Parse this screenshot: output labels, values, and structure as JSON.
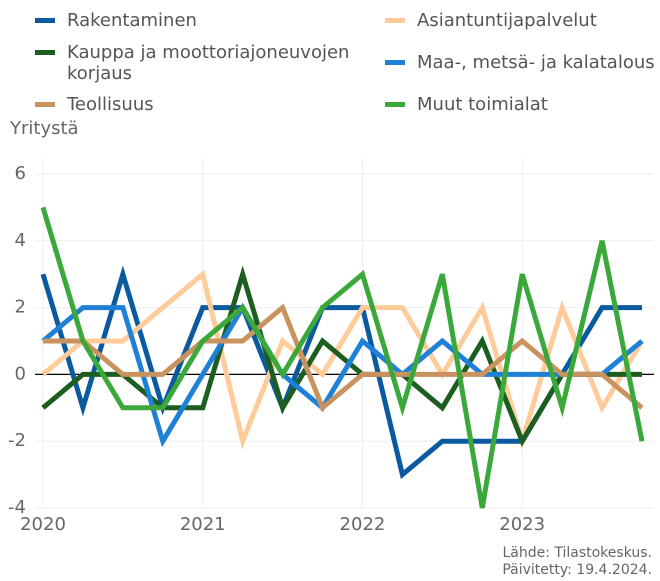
{
  "chart_data": {
    "type": "line",
    "y_label": "Yritystä",
    "source": "Lähde: Tilastokeskus.",
    "updated": "Päivitetty: 19.4.2024.",
    "x": [
      2020,
      2020.25,
      2020.5,
      2020.75,
      2021,
      2021.25,
      2021.5,
      2021.75,
      2022,
      2022.25,
      2022.5,
      2022.75,
      2023,
      2023.25,
      2023.5,
      2023.75
    ],
    "xlim": [
      2020,
      2023.75
    ],
    "xticks": [
      2020,
      2021,
      2022,
      2023
    ],
    "ylim": [
      -4,
      6
    ],
    "yticks": [
      -4,
      -2,
      0,
      2,
      4,
      6
    ],
    "grid": true,
    "series": [
      {
        "name": "Rakentaminen",
        "color": "#0b5aa0",
        "values": [
          3,
          -1,
          3,
          -1,
          2,
          2,
          -1,
          2,
          2,
          -3,
          -2,
          -2,
          -2,
          0,
          2,
          2
        ]
      },
      {
        "name": "Asiantuntijapalvelut",
        "color": "#ffcb98",
        "values": [
          0,
          1,
          1,
          2,
          3,
          -2,
          1,
          0,
          2,
          2,
          0,
          2,
          -2,
          2,
          -1,
          1
        ]
      },
      {
        "name": "Kauppa ja moottoriajoneuvojen korjaus",
        "color": "#1b5e20",
        "values": [
          -1,
          0,
          0,
          -1,
          -1,
          3,
          -1,
          1,
          0,
          0,
          -1,
          1,
          -2,
          0,
          0,
          0
        ]
      },
      {
        "name": "Maa-, metsä- ja kalatalous",
        "color": "#1f80d8",
        "values": [
          1,
          2,
          2,
          -2,
          0,
          2,
          0,
          -1,
          1,
          0,
          1,
          0,
          0,
          0,
          0,
          1
        ]
      },
      {
        "name": "Teollisuus",
        "color": "#c9935f",
        "values": [
          1,
          1,
          0,
          0,
          1,
          1,
          2,
          -1,
          0,
          0,
          0,
          0,
          1,
          0,
          0,
          -1
        ]
      },
      {
        "name": "Muut toimialat",
        "color": "#3aa83a",
        "values": [
          5,
          1,
          -1,
          -1,
          1,
          2,
          0,
          2,
          3,
          -1,
          3,
          -4,
          3,
          -1,
          4,
          -2
        ]
      }
    ]
  }
}
